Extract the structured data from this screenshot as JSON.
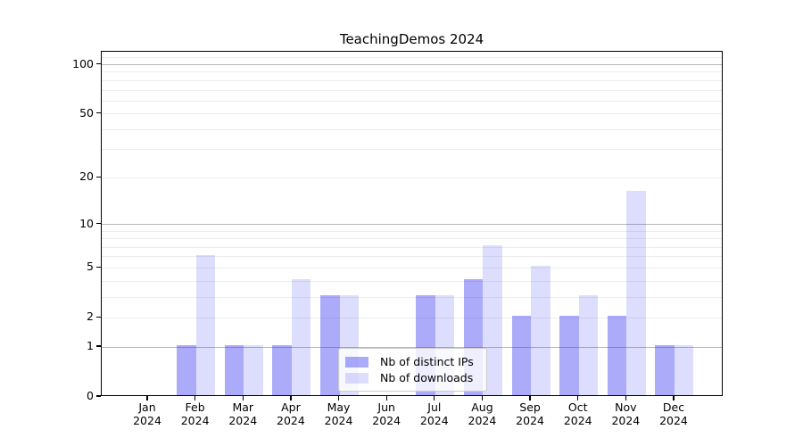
{
  "title": "TeachingDemos 2024",
  "legend": {
    "items": [
      {
        "label": "Nb of distinct IPs",
        "color": "#2d2df0",
        "alpha": 0.4
      },
      {
        "label": "Nb of downloads",
        "color": "#2d2df0",
        "alpha": 0.16
      }
    ]
  },
  "axes": {
    "x_months": [
      "Jan",
      "Feb",
      "Mar",
      "Apr",
      "May",
      "Jun",
      "Jul",
      "Aug",
      "Sep",
      "Oct",
      "Nov",
      "Dec"
    ],
    "x_year": "2024",
    "y_tick_labels": [
      "0",
      "1",
      "2",
      "5",
      "10",
      "20",
      "50",
      "100"
    ]
  },
  "chart_data": {
    "type": "bar",
    "title": "TeachingDemos 2024",
    "categories": [
      "Jan 2024",
      "Feb 2024",
      "Mar 2024",
      "Apr 2024",
      "May 2024",
      "Jun 2024",
      "Jul 2024",
      "Aug 2024",
      "Sep 2024",
      "Oct 2024",
      "Nov 2024",
      "Dec 2024"
    ],
    "series": [
      {
        "name": "Nb of distinct IPs",
        "values": [
          0,
          1,
          1,
          1,
          3,
          0,
          3,
          4,
          2,
          2,
          2,
          1
        ],
        "color": "#2d2df0",
        "alpha": 0.4
      },
      {
        "name": "Nb of downloads",
        "values": [
          0,
          6,
          1,
          4,
          3,
          0,
          3,
          7,
          5,
          3,
          16,
          1
        ],
        "color": "#2d2df0",
        "alpha": 0.16
      }
    ],
    "yscale": "log1p",
    "ylim": [
      0,
      120
    ],
    "y_ticks": [
      0,
      1,
      2,
      5,
      10,
      20,
      50,
      100
    ],
    "y_major_gridlines": [
      1,
      10,
      100
    ],
    "y_minor_gridlines": [
      2,
      3,
      4,
      5,
      6,
      7,
      8,
      9,
      20,
      30,
      40,
      50,
      60,
      70,
      80,
      90,
      110
    ],
    "grid": true,
    "legend_position": "lower center"
  },
  "colors": {
    "bar_base": "#2d2df0",
    "major_grid": "#b9b9b9",
    "minor_grid": "#ececec",
    "spine": "#000000",
    "background": "#ffffff"
  }
}
